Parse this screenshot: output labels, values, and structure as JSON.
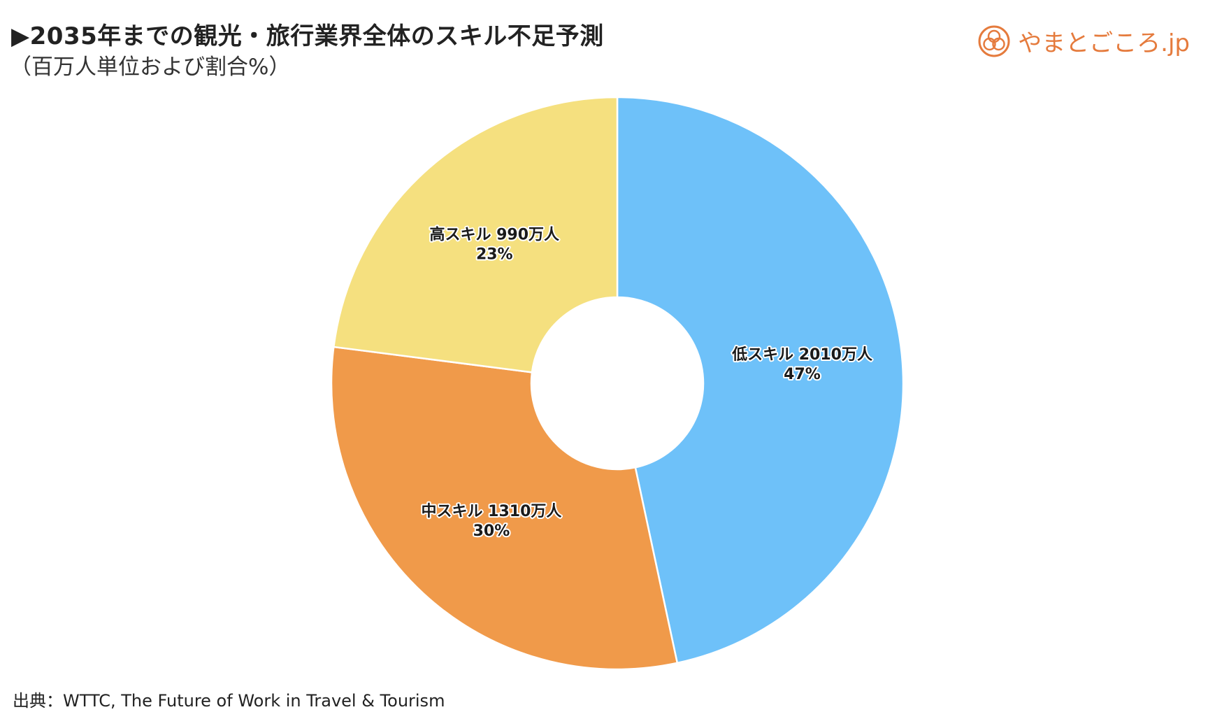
{
  "title": "▶2035年までの観光・旅行業界全体のスキル不足予測",
  "subtitle": "（百万人単位および割合%）",
  "brand": {
    "name": "やまとごころ.jp",
    "color": "#e57b3d",
    "icon": "yamatogokoro-logo-icon"
  },
  "source": "出典：WTTC, The Future of Work in Travel & Tourism",
  "chart_data": {
    "type": "pie",
    "donut": true,
    "title": "▶2035年までの観光・旅行業界全体のスキル不足予測",
    "subtitle": "（百万人単位および割合%）",
    "slices": [
      {
        "label": "低スキル 2010万人",
        "value": 2010,
        "percent_label": "47%",
        "color": "#6ec1f9"
      },
      {
        "label": "中スキル 1310万人",
        "value": 1310,
        "percent_label": "30%",
        "color": "#f09a4a"
      },
      {
        "label": "高スキル 990万人",
        "value": 990,
        "percent_label": "23%",
        "color": "#f5e07f"
      }
    ],
    "start_angle": "12 o'clock",
    "direction": "clockwise",
    "legend": "none"
  }
}
